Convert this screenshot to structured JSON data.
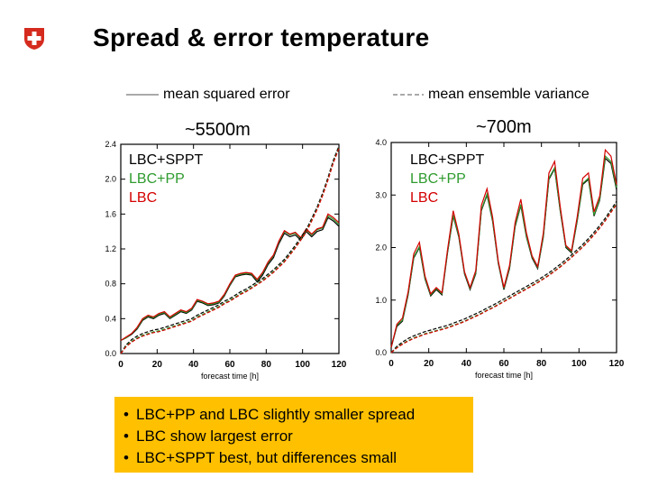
{
  "title": "Spread & error temperature",
  "legend": {
    "solid_label": "mean squared error",
    "dashed_label": "mean ensemble variance"
  },
  "series_labels": [
    {
      "label": "LBC+SPPT",
      "color": "#000000"
    },
    {
      "label": "LBC+PP",
      "color": "#2e9b2e"
    },
    {
      "label": "LBC",
      "color": "#d40000"
    }
  ],
  "notes": [
    "LBC+PP and LBC slightly smaller spread",
    "LBC show largest error",
    "LBC+SPPT best, but differences small"
  ],
  "colors": {
    "note_bg": "#ffc000",
    "logo_red": "#d52b1e"
  },
  "chart_data": [
    {
      "type": "line",
      "title": "~5500m",
      "xlabel": "forecast time [h]",
      "ylabel": "",
      "xlim": [
        0,
        120
      ],
      "ylim": [
        0,
        2.4
      ],
      "xticks": [
        0,
        20,
        40,
        60,
        80,
        100,
        120
      ],
      "yticks": [
        0.0,
        0.4,
        0.8,
        1.2,
        1.6,
        2.0,
        2.4
      ],
      "ytick_labels": [
        "0.0",
        "0.4",
        "0.8",
        "1.2",
        "1.6",
        "2.0",
        "2.4"
      ],
      "x": [
        0,
        3,
        6,
        9,
        12,
        15,
        18,
        21,
        24,
        27,
        30,
        33,
        36,
        39,
        42,
        45,
        48,
        51,
        54,
        57,
        60,
        63,
        66,
        69,
        72,
        75,
        78,
        81,
        84,
        87,
        90,
        93,
        96,
        99,
        102,
        105,
        108,
        111,
        114,
        117,
        120
      ],
      "series": [
        {
          "name": "LBC+SPPT mse",
          "color": "#000000",
          "style": "solid",
          "values": [
            0.15,
            0.18,
            0.22,
            0.28,
            0.38,
            0.42,
            0.4,
            0.44,
            0.46,
            0.4,
            0.44,
            0.48,
            0.46,
            0.5,
            0.6,
            0.58,
            0.55,
            0.56,
            0.58,
            0.66,
            0.78,
            0.88,
            0.9,
            0.91,
            0.9,
            0.82,
            0.9,
            1.02,
            1.1,
            1.26,
            1.38,
            1.34,
            1.36,
            1.3,
            1.4,
            1.34,
            1.4,
            1.42,
            1.56,
            1.52,
            1.46
          ]
        },
        {
          "name": "LBC+PP mse",
          "color": "#2e9b2e",
          "style": "solid",
          "values": [
            0.15,
            0.18,
            0.23,
            0.29,
            0.39,
            0.43,
            0.41,
            0.45,
            0.47,
            0.41,
            0.45,
            0.49,
            0.47,
            0.51,
            0.61,
            0.59,
            0.56,
            0.57,
            0.59,
            0.67,
            0.79,
            0.89,
            0.91,
            0.92,
            0.91,
            0.84,
            0.92,
            1.04,
            1.12,
            1.28,
            1.4,
            1.36,
            1.38,
            1.32,
            1.42,
            1.36,
            1.42,
            1.44,
            1.58,
            1.54,
            1.48
          ]
        },
        {
          "name": "LBC mse",
          "color": "#d40000",
          "style": "solid",
          "values": [
            0.15,
            0.19,
            0.23,
            0.3,
            0.4,
            0.44,
            0.42,
            0.46,
            0.48,
            0.42,
            0.46,
            0.5,
            0.48,
            0.52,
            0.62,
            0.6,
            0.57,
            0.58,
            0.6,
            0.68,
            0.8,
            0.9,
            0.92,
            0.93,
            0.92,
            0.85,
            0.93,
            1.05,
            1.13,
            1.29,
            1.41,
            1.37,
            1.39,
            1.33,
            1.43,
            1.37,
            1.43,
            1.45,
            1.6,
            1.56,
            1.5
          ]
        },
        {
          "name": "LBC+SPPT var",
          "color": "#000000",
          "style": "dashed",
          "values": [
            0.0,
            0.1,
            0.16,
            0.2,
            0.23,
            0.25,
            0.27,
            0.28,
            0.3,
            0.32,
            0.34,
            0.36,
            0.38,
            0.4,
            0.44,
            0.47,
            0.5,
            0.53,
            0.56,
            0.6,
            0.63,
            0.67,
            0.71,
            0.74,
            0.78,
            0.82,
            0.86,
            0.91,
            0.96,
            1.02,
            1.08,
            1.16,
            1.24,
            1.33,
            1.42,
            1.55,
            1.68,
            1.84,
            2.02,
            2.22,
            2.38
          ]
        },
        {
          "name": "LBC+PP var",
          "color": "#2e9b2e",
          "style": "dashed",
          "values": [
            0.0,
            0.09,
            0.14,
            0.18,
            0.21,
            0.23,
            0.25,
            0.26,
            0.28,
            0.3,
            0.32,
            0.34,
            0.36,
            0.38,
            0.42,
            0.45,
            0.48,
            0.51,
            0.54,
            0.58,
            0.61,
            0.65,
            0.69,
            0.72,
            0.76,
            0.8,
            0.84,
            0.89,
            0.94,
            1.0,
            1.06,
            1.14,
            1.22,
            1.31,
            1.4,
            1.53,
            1.66,
            1.82,
            2.0,
            2.2,
            2.36
          ]
        },
        {
          "name": "LBC var",
          "color": "#d40000",
          "style": "dashed",
          "values": [
            0.0,
            0.08,
            0.13,
            0.17,
            0.2,
            0.22,
            0.24,
            0.25,
            0.27,
            0.29,
            0.31,
            0.33,
            0.35,
            0.37,
            0.41,
            0.44,
            0.47,
            0.5,
            0.53,
            0.57,
            0.6,
            0.64,
            0.68,
            0.71,
            0.75,
            0.79,
            0.83,
            0.88,
            0.93,
            0.99,
            1.05,
            1.13,
            1.21,
            1.3,
            1.39,
            1.52,
            1.65,
            1.81,
            1.99,
            2.19,
            2.35
          ]
        }
      ]
    },
    {
      "type": "line",
      "title": "~700m",
      "xlabel": "forecast time [h]",
      "ylabel": "",
      "xlim": [
        0,
        120
      ],
      "ylim": [
        0,
        4.0
      ],
      "xticks": [
        0,
        20,
        40,
        60,
        80,
        100,
        120
      ],
      "yticks": [
        0.0,
        1.0,
        2.0,
        3.0,
        4.0
      ],
      "ytick_labels": [
        "0.0",
        "1.0",
        "2.0",
        "3.0",
        "4.0"
      ],
      "x": [
        0,
        3,
        6,
        9,
        12,
        15,
        18,
        21,
        24,
        27,
        30,
        33,
        36,
        39,
        42,
        45,
        48,
        51,
        54,
        57,
        60,
        63,
        66,
        69,
        72,
        75,
        78,
        81,
        84,
        87,
        90,
        93,
        96,
        99,
        102,
        105,
        108,
        111,
        114,
        117,
        120
      ],
      "series": [
        {
          "name": "LBC+SPPT mse",
          "color": "#000000",
          "style": "solid",
          "values": [
            0.1,
            0.5,
            0.6,
            1.1,
            1.8,
            2.0,
            1.4,
            1.08,
            1.2,
            1.1,
            1.9,
            2.6,
            2.2,
            1.5,
            1.2,
            1.5,
            2.7,
            3.0,
            2.5,
            1.7,
            1.2,
            1.6,
            2.4,
            2.8,
            2.2,
            1.8,
            1.6,
            2.2,
            3.3,
            3.5,
            2.7,
            2.0,
            1.9,
            2.5,
            3.2,
            3.3,
            2.6,
            2.9,
            3.7,
            3.6,
            3.1
          ]
        },
        {
          "name": "LBC+PP mse",
          "color": "#2e9b2e",
          "style": "solid",
          "values": [
            0.1,
            0.52,
            0.62,
            1.12,
            1.82,
            2.02,
            1.42,
            1.1,
            1.22,
            1.12,
            1.92,
            2.62,
            2.22,
            1.52,
            1.22,
            1.52,
            2.72,
            3.02,
            2.52,
            1.72,
            1.22,
            1.62,
            2.42,
            2.82,
            2.22,
            1.82,
            1.62,
            2.22,
            3.32,
            3.52,
            2.72,
            2.02,
            1.92,
            2.52,
            3.22,
            3.32,
            2.62,
            2.92,
            3.74,
            3.64,
            3.14
          ]
        },
        {
          "name": "LBC mse",
          "color": "#d40000",
          "style": "solid",
          "values": [
            0.1,
            0.54,
            0.66,
            1.16,
            1.88,
            2.1,
            1.46,
            1.12,
            1.24,
            1.14,
            1.96,
            2.7,
            2.26,
            1.54,
            1.24,
            1.56,
            2.8,
            3.12,
            2.58,
            1.74,
            1.24,
            1.66,
            2.48,
            2.92,
            2.28,
            1.84,
            1.64,
            2.28,
            3.42,
            3.64,
            2.78,
            2.04,
            1.94,
            2.58,
            3.32,
            3.42,
            2.68,
            2.98,
            3.86,
            3.74,
            3.2
          ]
        },
        {
          "name": "LBC+SPPT var",
          "color": "#000000",
          "style": "dashed",
          "values": [
            0.0,
            0.12,
            0.2,
            0.27,
            0.32,
            0.36,
            0.4,
            0.43,
            0.46,
            0.49,
            0.52,
            0.56,
            0.6,
            0.64,
            0.69,
            0.74,
            0.79,
            0.85,
            0.9,
            0.96,
            1.02,
            1.08,
            1.14,
            1.2,
            1.26,
            1.32,
            1.38,
            1.45,
            1.52,
            1.6,
            1.68,
            1.77,
            1.86,
            1.96,
            2.06,
            2.17,
            2.29,
            2.42,
            2.56,
            2.72,
            2.88
          ]
        },
        {
          "name": "LBC+PP var",
          "color": "#2e9b2e",
          "style": "dashed",
          "values": [
            0.0,
            0.1,
            0.17,
            0.23,
            0.28,
            0.32,
            0.36,
            0.39,
            0.42,
            0.45,
            0.48,
            0.52,
            0.56,
            0.6,
            0.65,
            0.7,
            0.75,
            0.81,
            0.86,
            0.92,
            0.98,
            1.04,
            1.1,
            1.16,
            1.22,
            1.28,
            1.34,
            1.41,
            1.48,
            1.56,
            1.64,
            1.73,
            1.82,
            1.92,
            2.02,
            2.13,
            2.25,
            2.38,
            2.52,
            2.68,
            2.84
          ]
        },
        {
          "name": "LBC var",
          "color": "#d40000",
          "style": "dashed",
          "values": [
            0.0,
            0.09,
            0.16,
            0.22,
            0.27,
            0.31,
            0.35,
            0.38,
            0.41,
            0.44,
            0.47,
            0.51,
            0.55,
            0.59,
            0.64,
            0.69,
            0.74,
            0.8,
            0.85,
            0.91,
            0.97,
            1.03,
            1.09,
            1.15,
            1.21,
            1.27,
            1.33,
            1.4,
            1.47,
            1.55,
            1.63,
            1.72,
            1.81,
            1.91,
            2.01,
            2.12,
            2.24,
            2.37,
            2.51,
            2.67,
            2.82
          ]
        }
      ]
    }
  ]
}
